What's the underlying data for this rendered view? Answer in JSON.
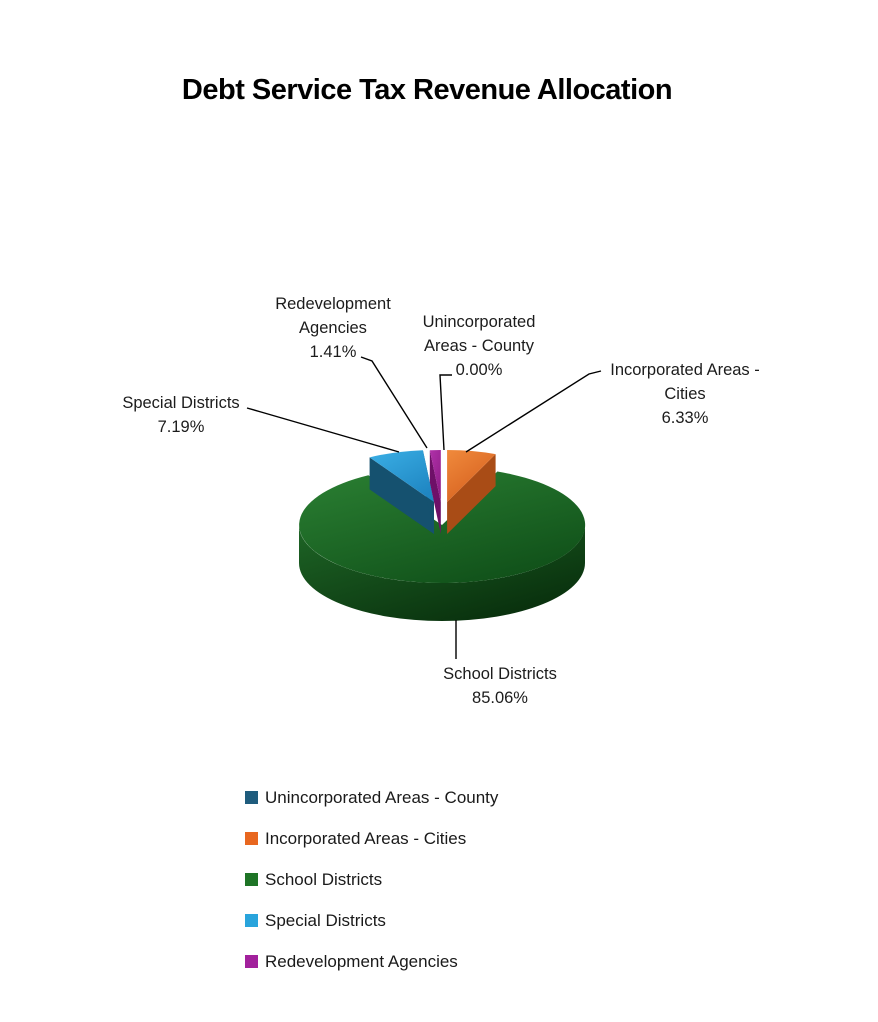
{
  "title": "Debt Service Tax Revenue Allocation",
  "chart_data": {
    "type": "pie",
    "title": "Debt Service Tax Revenue Allocation",
    "is_3d": true,
    "unit": "%",
    "start_angle_deg": 0,
    "direction": "clockwise",
    "legend_position": "bottom-left",
    "slices": [
      {
        "label": "Unincorporated Areas - County",
        "value": 0.0,
        "display": "0.00%",
        "exploded": true
      },
      {
        "label": "Incorporated Areas - Cities",
        "value": 6.33,
        "display": "6.33%",
        "exploded": true
      },
      {
        "label": "School Districts",
        "value": 85.06,
        "display": "85.06%",
        "exploded": false
      },
      {
        "label": "Special Districts",
        "value": 7.19,
        "display": "7.19%",
        "exploded": true
      },
      {
        "label": "Redevelopment Agencies",
        "value": 1.41,
        "display": "1.41%",
        "exploded": true
      }
    ],
    "colors": [
      {
        "swatch": "#1F5C7D",
        "top": [
          "#2E7DA8",
          "#1F5C7D"
        ],
        "side": [
          "#143D54",
          "#143D54"
        ]
      },
      {
        "swatch": "#E8671F",
        "top": [
          "#F08A3C",
          "#D55F1E"
        ],
        "side": [
          "#A94C16",
          "#A94C16"
        ]
      },
      {
        "swatch": "#1E7426",
        "top": [
          "#2B8033",
          "#11521A"
        ],
        "side": [
          "#1E6526",
          "#072C0B"
        ]
      },
      {
        "swatch": "#29A4DC",
        "top": [
          "#3BAFE5",
          "#1F86C2"
        ],
        "side": [
          "#15516F",
          "#15516F"
        ]
      },
      {
        "swatch": "#A2219C",
        "top": [
          "#B031A9",
          "#8E1D88"
        ],
        "side": [
          "#6E1068",
          "#6E1068"
        ]
      }
    ]
  },
  "callouts": {
    "redevelopment": "Redevelopment\nAgencies\n1.41%",
    "county": "Unincorporated\nAreas - County\n0.00%",
    "cities": "Incorporated Areas -\nCities\n6.33%",
    "special": "Special Districts\n7.19%",
    "school": "School Districts\n85.06%"
  }
}
